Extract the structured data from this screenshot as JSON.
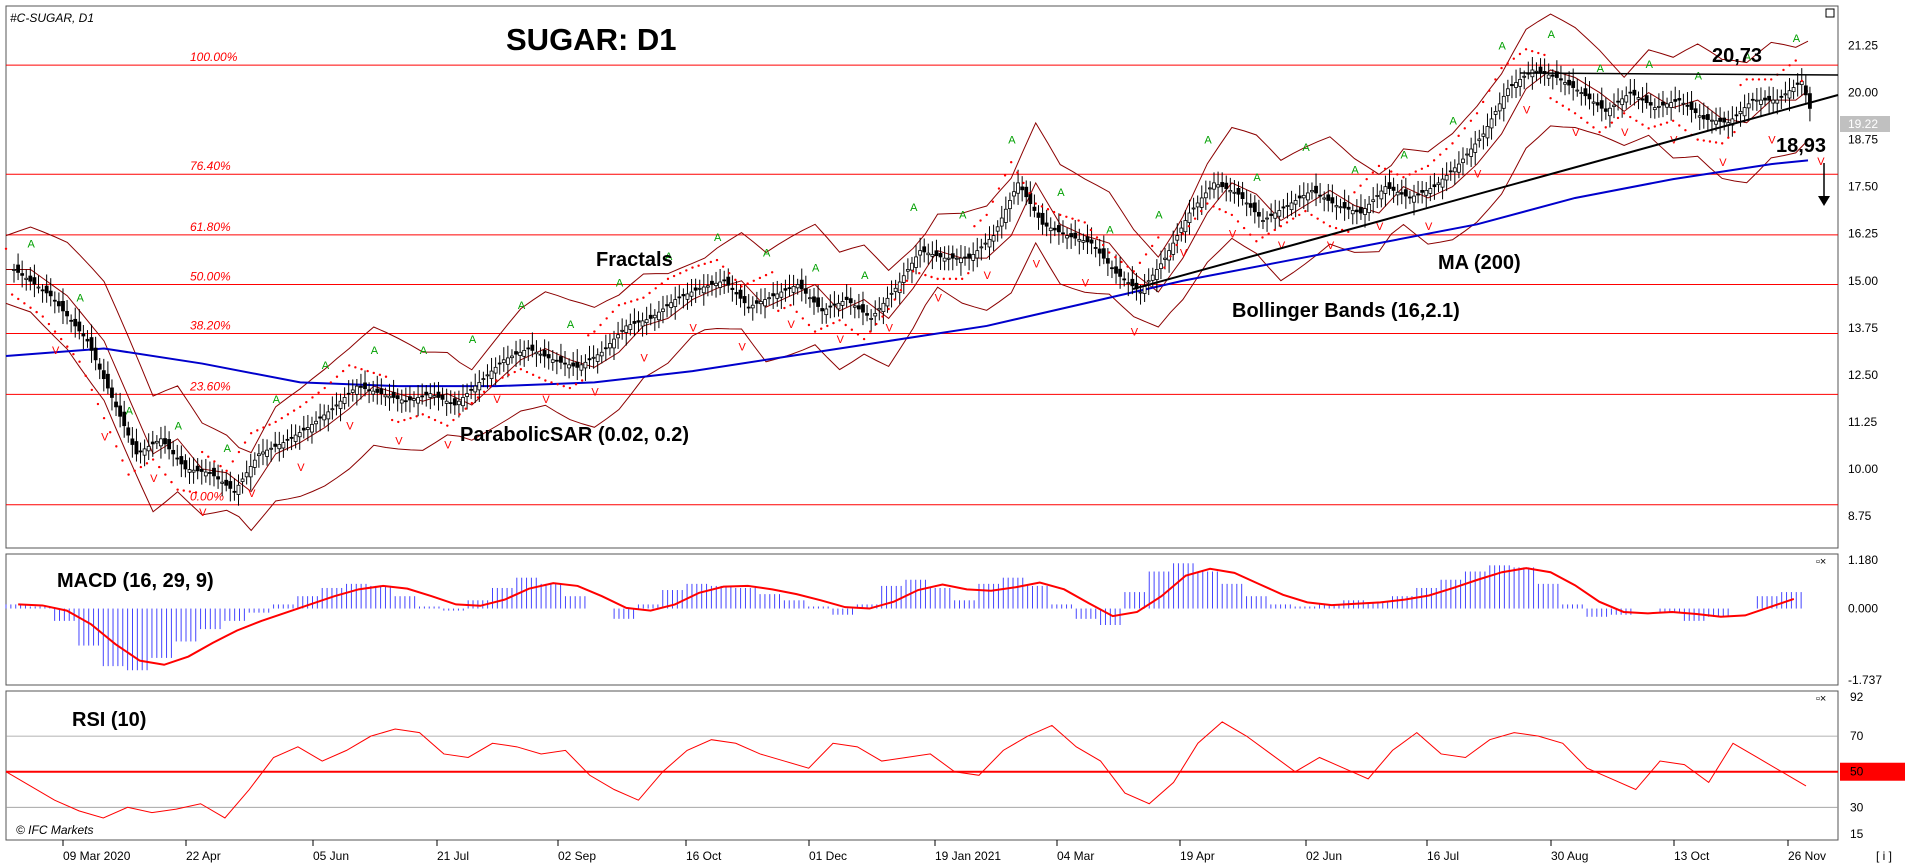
{
  "header": {
    "symbol": "#C-SUGAR, D1",
    "title": "SUGAR: D1"
  },
  "colors": {
    "price_bg": "#ffffff",
    "ma": "#0000cc",
    "bollinger": "#8b0000",
    "sar": "#ff0000",
    "fractal_up": "#00a000",
    "fractal_down": "#ff0000",
    "fib": "#ff0000",
    "macd_hist": "#4444ff",
    "macd_signal": "#ff0000",
    "rsi": "#ff0000",
    "trendline": "#000000",
    "current_price_bg": "#c0c0c0"
  },
  "labels": {
    "fractals": "Fractals",
    "ma": "MA (200)",
    "bollinger": "Bollinger Bands (16,2.1)",
    "sar": "ParabolicSAR (0.02, 0.2)",
    "macd": "MACD (16, 29, 9)",
    "rsi": "RSI (10)",
    "high_value": "20,73",
    "target_value": "18,93",
    "copyright": "© IFC Markets",
    "current_price": "19.22",
    "corner_button": "[ i ]"
  },
  "chart_data": {
    "type": "candlestick",
    "title": "SUGAR: D1",
    "price_axis": {
      "ticks": [
        "21.25",
        "20.00",
        "18.75",
        "17.50",
        "16.25",
        "15.00",
        "13.75",
        "12.50",
        "11.25",
        "10.00",
        "8.75"
      ],
      "range": [
        7.9,
        22.3
      ]
    },
    "macd_axis": {
      "ticks": [
        "1.180",
        "0.000",
        "-1.737"
      ],
      "range": [
        -1.737,
        1.18
      ]
    },
    "rsi_axis": {
      "ticks": [
        "92",
        "70",
        "50",
        "30",
        "15"
      ],
      "range": [
        15,
        92
      ],
      "level": 50
    },
    "x_ticks": [
      "09 Mar 2020",
      "22 Apr",
      "05 Jun",
      "21 Jul",
      "02 Sep",
      "16 Oct",
      "01 Dec",
      "19 Jan 2021",
      "04 Mar",
      "19 Apr",
      "02 Jun",
      "16 Jul",
      "30 Aug",
      "13 Oct",
      "26 Nov"
    ],
    "fibonacci": [
      {
        "label": "100.00%",
        "value": 20.73
      },
      {
        "label": "76.40%",
        "value": 17.83
      },
      {
        "label": "61.80%",
        "value": 16.22
      },
      {
        "label": "50.00%",
        "value": 14.9
      },
      {
        "label": "38.20%",
        "value": 13.6
      },
      {
        "label": "23.60%",
        "value": 11.98
      },
      {
        "label": "0.00%",
        "value": 9.05
      }
    ],
    "price_path": [
      [
        0,
        15.3
      ],
      [
        3,
        14.6
      ],
      [
        6,
        13.4
      ],
      [
        8,
        11.9
      ],
      [
        10,
        10.4
      ],
      [
        12,
        10.8
      ],
      [
        14,
        10.0
      ],
      [
        16,
        9.9
      ],
      [
        18,
        9.4
      ],
      [
        20,
        10.4
      ],
      [
        22,
        10.7
      ],
      [
        24,
        11.1
      ],
      [
        26,
        11.6
      ],
      [
        28,
        12.2
      ],
      [
        30,
        12.0
      ],
      [
        32,
        11.8
      ],
      [
        34,
        12.0
      ],
      [
        36,
        11.7
      ],
      [
        38,
        12.3
      ],
      [
        40,
        12.9
      ],
      [
        42,
        13.2
      ],
      [
        44,
        12.9
      ],
      [
        46,
        12.7
      ],
      [
        48,
        13.1
      ],
      [
        50,
        13.8
      ],
      [
        52,
        14.0
      ],
      [
        54,
        14.5
      ],
      [
        56,
        14.8
      ],
      [
        58,
        15.0
      ],
      [
        60,
        14.3
      ],
      [
        62,
        14.6
      ],
      [
        64,
        14.9
      ],
      [
        66,
        14.2
      ],
      [
        68,
        14.5
      ],
      [
        70,
        14.0
      ],
      [
        72,
        14.8
      ],
      [
        74,
        15.8
      ],
      [
        76,
        15.6
      ],
      [
        78,
        15.6
      ],
      [
        80,
        16.2
      ],
      [
        82,
        17.6
      ],
      [
        84,
        16.5
      ],
      [
        86,
        16.2
      ],
      [
        88,
        16.0
      ],
      [
        90,
        15.2
      ],
      [
        92,
        14.7
      ],
      [
        94,
        15.6
      ],
      [
        96,
        16.8
      ],
      [
        98,
        17.6
      ],
      [
        100,
        17.3
      ],
      [
        102,
        16.6
      ],
      [
        104,
        17.0
      ],
      [
        106,
        17.4
      ],
      [
        108,
        17.0
      ],
      [
        110,
        16.8
      ],
      [
        112,
        17.5
      ],
      [
        114,
        17.2
      ],
      [
        116,
        17.5
      ],
      [
        118,
        18.1
      ],
      [
        120,
        18.9
      ],
      [
        122,
        20.1
      ],
      [
        124,
        20.6
      ],
      [
        126,
        20.4
      ],
      [
        128,
        20.0
      ],
      [
        130,
        19.5
      ],
      [
        132,
        20.0
      ],
      [
        134,
        19.6
      ],
      [
        136,
        19.8
      ],
      [
        138,
        19.3
      ],
      [
        140,
        19.2
      ],
      [
        142,
        19.8
      ],
      [
        144,
        19.8
      ],
      [
        146,
        20.3
      ],
      [
        147,
        19.22
      ]
    ],
    "ma200_path": [
      [
        0,
        13.0
      ],
      [
        8,
        13.2
      ],
      [
        16,
        12.8
      ],
      [
        24,
        12.3
      ],
      [
        32,
        12.2
      ],
      [
        40,
        12.2
      ],
      [
        48,
        12.3
      ],
      [
        56,
        12.6
      ],
      [
        64,
        13.0
      ],
      [
        72,
        13.4
      ],
      [
        80,
        13.8
      ],
      [
        88,
        14.4
      ],
      [
        96,
        15.0
      ],
      [
        104,
        15.5
      ],
      [
        112,
        16.0
      ],
      [
        120,
        16.5
      ],
      [
        128,
        17.2
      ],
      [
        136,
        17.7
      ],
      [
        144,
        18.1
      ],
      [
        147,
        18.2
      ]
    ],
    "macd_hist": [
      0.1,
      0.05,
      -0.3,
      -0.9,
      -1.4,
      -1.5,
      -1.2,
      -0.8,
      -0.5,
      -0.3,
      -0.1,
      0.1,
      0.3,
      0.5,
      0.6,
      0.55,
      0.3,
      0.05,
      -0.05,
      0.2,
      0.5,
      0.75,
      0.6,
      0.3,
      0.0,
      -0.25,
      0.1,
      0.45,
      0.6,
      0.55,
      0.5,
      0.35,
      0.2,
      0.05,
      -0.15,
      0.1,
      0.55,
      0.7,
      0.5,
      0.2,
      0.6,
      0.75,
      0.55,
      0.1,
      -0.25,
      -0.4,
      0.4,
      0.9,
      1.1,
      0.9,
      0.6,
      0.3,
      0.1,
      0.05,
      0.1,
      0.2,
      0.15,
      0.3,
      0.5,
      0.7,
      0.9,
      1.05,
      1.0,
      0.6,
      0.1,
      -0.2,
      -0.15,
      0.0,
      -0.1,
      -0.3,
      -0.2,
      0.0,
      0.3,
      0.4
    ],
    "rsi": [
      50,
      42,
      34,
      28,
      24,
      30,
      27,
      29,
      32,
      24,
      40,
      58,
      64,
      56,
      62,
      70,
      74,
      72,
      60,
      58,
      66,
      64,
      60,
      62,
      48,
      40,
      34,
      50,
      62,
      68,
      66,
      60,
      56,
      52,
      66,
      64,
      56,
      58,
      60,
      50,
      48,
      62,
      70,
      76,
      64,
      56,
      38,
      32,
      44,
      66,
      78,
      70,
      60,
      50,
      58,
      52,
      46,
      62,
      72,
      60,
      58,
      68,
      72,
      70,
      66,
      52,
      46,
      40,
      56,
      54,
      44,
      66,
      58,
      50,
      42
    ]
  }
}
